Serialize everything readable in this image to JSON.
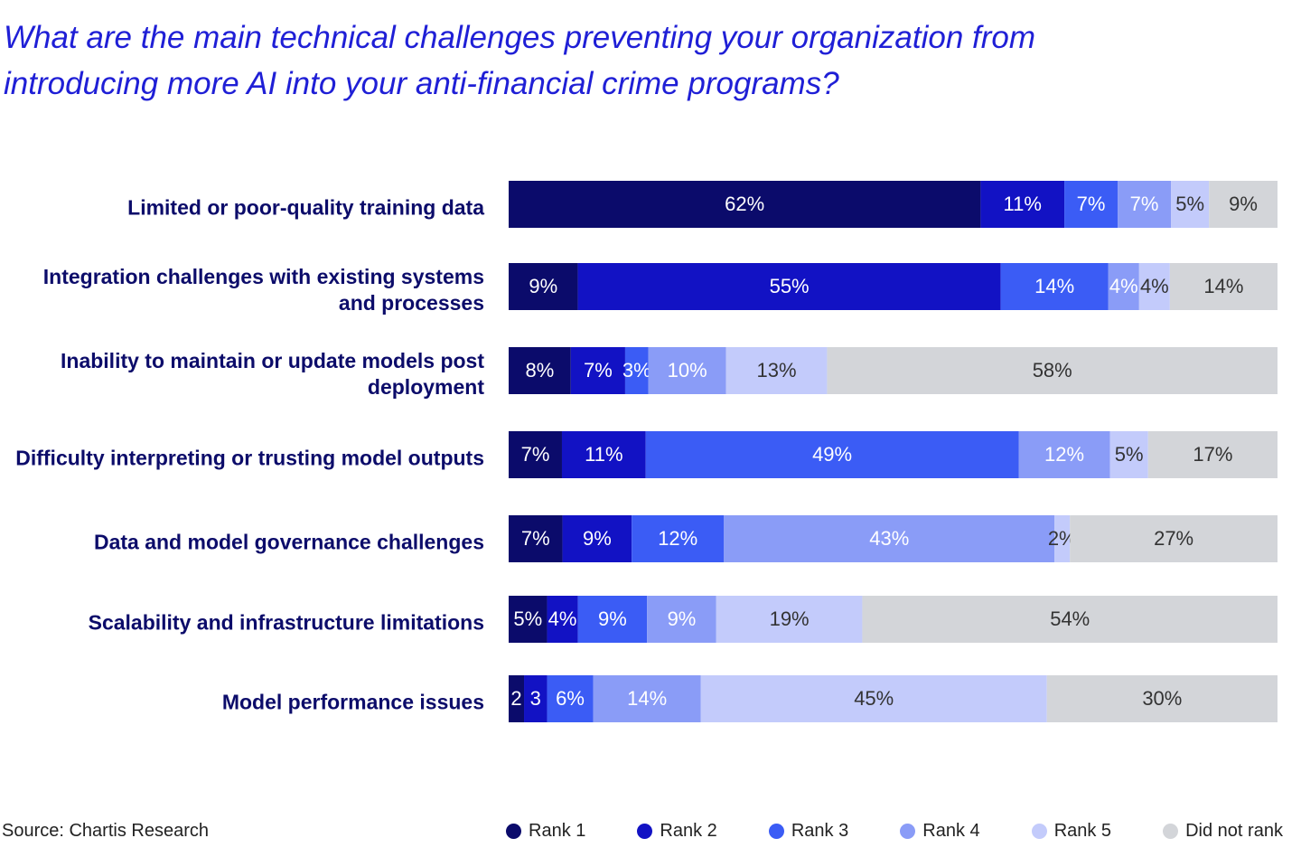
{
  "chart_data": {
    "type": "stacked-bar-horizontal",
    "title": "What are the main technical challenges preventing your organization from introducing more AI into your anti-financial crime programs?",
    "categories": [
      "Limited or poor-quality training data",
      "Integration challenges with existing systems and processes",
      "Inability to maintain or update models post deployment",
      "Difficulty interpreting or trusting model outputs",
      "Data and model governance challenges",
      "Scalability and infrastructure limitations",
      "Model performance issues"
    ],
    "series": [
      {
        "name": "Rank 1",
        "color": "#0b0b6b",
        "values": [
          62,
          9,
          8,
          7,
          7,
          5,
          2
        ],
        "value_labels": [
          "62%",
          "9%",
          "8%",
          "7%",
          "7%",
          "5%",
          "2"
        ]
      },
      {
        "name": "Rank 2",
        "color": "#1212c4",
        "values": [
          11,
          55,
          7,
          11,
          9,
          4,
          3
        ],
        "value_labels": [
          "11%",
          "55%",
          "7%",
          "11%",
          "9%",
          "4%",
          "3"
        ]
      },
      {
        "name": "Rank 3",
        "color": "#3b5cf5",
        "values": [
          7,
          14,
          3,
          49,
          12,
          9,
          6
        ],
        "value_labels": [
          "7%",
          "14%",
          "3%",
          "49%",
          "12%",
          "9%",
          "6%"
        ]
      },
      {
        "name": "Rank 4",
        "color": "#8a9cf7",
        "values": [
          7,
          4,
          10,
          12,
          43,
          9,
          14
        ],
        "value_labels": [
          "7%",
          "4%",
          "10%",
          "12%",
          "43%",
          "9%",
          "14%"
        ]
      },
      {
        "name": "Rank 5",
        "color": "#c3cbfb",
        "values": [
          5,
          4,
          13,
          5,
          2,
          19,
          45
        ],
        "value_labels": [
          "5%",
          "4%",
          "13%",
          "5%",
          "2%",
          "19%",
          "45%"
        ]
      },
      {
        "name": "Did not rank",
        "color": "#d3d5d9",
        "values": [
          9,
          14,
          58,
          17,
          27,
          54,
          30
        ],
        "value_labels": [
          "9%",
          "14%",
          "58%",
          "17%",
          "27%",
          "54%",
          "30%"
        ]
      }
    ],
    "source": "Source: Chartis Research"
  }
}
